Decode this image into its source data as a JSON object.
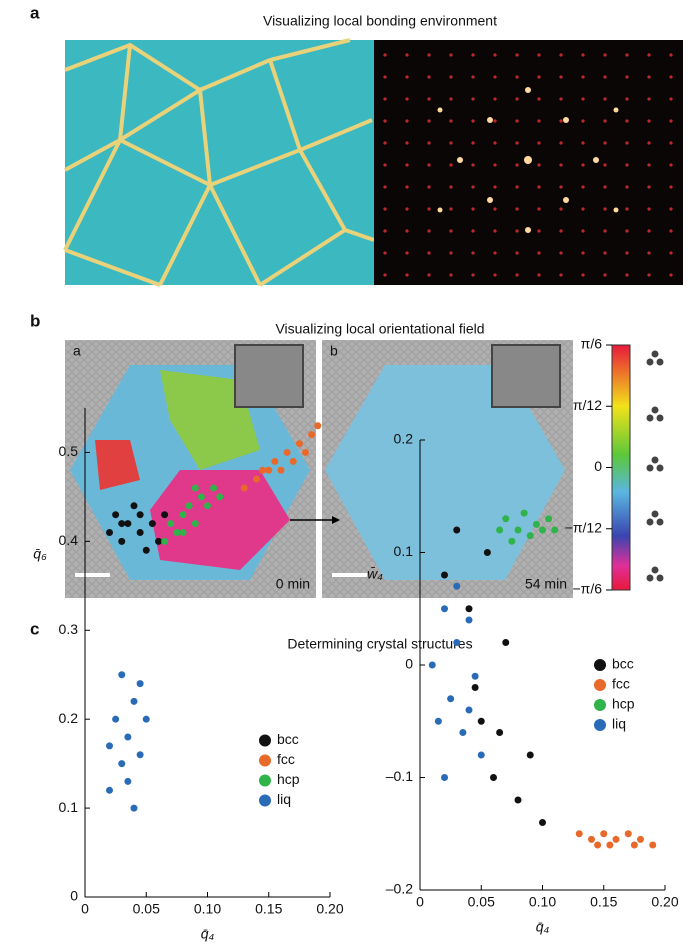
{
  "panel_a": {
    "label": "a",
    "title": "Visualizing local bonding environment"
  },
  "panel_b": {
    "label": "b",
    "title": "Visualizing local orientational field",
    "images": [
      {
        "label": "a",
        "time": "0 min"
      },
      {
        "label": "b",
        "time": "54 min"
      }
    ],
    "colorbar": {
      "lim": [
        -0.5236,
        0.5236
      ],
      "ticks": [
        {
          "value": 0.5236,
          "label": "π/6"
        },
        {
          "value": 0.2618,
          "label": "π/12"
        },
        0,
        {
          "value": -0.2618,
          "label": "−π/12"
        },
        {
          "value": -0.5236,
          "label": "−π/6"
        }
      ]
    }
  },
  "panel_c": {
    "label": "c",
    "title": "Determining crystal structures"
  },
  "chart_data": [
    {
      "type": "scatter",
      "xlabel": "q̄₄",
      "ylabel": "q̄₆",
      "xlim": [
        0,
        0.2
      ],
      "ylim": [
        0,
        0.55
      ],
      "xticks": [
        0,
        0.05,
        {
          "value": 0.1,
          "label": "0.10"
        },
        0.15,
        {
          "value": 0.2,
          "label": "0.20"
        }
      ],
      "yticks": [
        0,
        0.1,
        0.2,
        0.3,
        0.4,
        0.5
      ],
      "legend": "lower right",
      "series": [
        {
          "name": "bcc",
          "color": "#111111",
          "x": [
            0.02,
            0.025,
            0.03,
            0.035,
            0.04,
            0.045,
            0.05,
            0.055,
            0.06,
            0.065,
            0.03,
            0.045
          ],
          "y": [
            0.41,
            0.43,
            0.4,
            0.42,
            0.44,
            0.41,
            0.39,
            0.42,
            0.4,
            0.43,
            0.42,
            0.43
          ]
        },
        {
          "name": "fcc",
          "color": "#e8692a",
          "x": [
            0.13,
            0.14,
            0.15,
            0.155,
            0.16,
            0.165,
            0.17,
            0.175,
            0.18,
            0.185,
            0.19,
            0.145
          ],
          "y": [
            0.46,
            0.47,
            0.48,
            0.49,
            0.48,
            0.5,
            0.49,
            0.51,
            0.5,
            0.52,
            0.53,
            0.48
          ]
        },
        {
          "name": "hcp",
          "color": "#2fb34a",
          "x": [
            0.065,
            0.07,
            0.075,
            0.08,
            0.085,
            0.09,
            0.095,
            0.1,
            0.105,
            0.11,
            0.08,
            0.09
          ],
          "y": [
            0.4,
            0.42,
            0.41,
            0.43,
            0.44,
            0.42,
            0.45,
            0.44,
            0.46,
            0.45,
            0.41,
            0.46
          ]
        },
        {
          "name": "liq",
          "color": "#2a6bb8",
          "x": [
            0.02,
            0.025,
            0.03,
            0.03,
            0.035,
            0.04,
            0.04,
            0.045,
            0.05,
            0.02,
            0.035,
            0.045
          ],
          "y": [
            0.12,
            0.2,
            0.15,
            0.25,
            0.18,
            0.1,
            0.22,
            0.16,
            0.2,
            0.17,
            0.13,
            0.24
          ]
        }
      ]
    },
    {
      "type": "scatter",
      "xlabel": "q̄₄",
      "ylabel": "w̄₄",
      "xlim": [
        0,
        0.2
      ],
      "ylim": [
        -0.2,
        0.2
      ],
      "xticks": [
        0,
        0.05,
        {
          "value": 0.1,
          "label": "0.10"
        },
        0.15,
        {
          "value": 0.2,
          "label": "0.20"
        }
      ],
      "yticks": [
        {
          "value": -0.2,
          "label": "–0.2"
        },
        {
          "value": -0.1,
          "label": "–0.1"
        },
        0,
        0.1,
        0.2
      ],
      "legend": "center right",
      "series": [
        {
          "name": "bcc",
          "color": "#111111",
          "x": [
            0.02,
            0.03,
            0.04,
            0.05,
            0.06,
            0.07,
            0.08,
            0.09,
            0.1,
            0.045,
            0.055,
            0.065
          ],
          "y": [
            0.08,
            0.12,
            0.05,
            -0.05,
            -0.1,
            0.02,
            -0.12,
            -0.08,
            -0.14,
            -0.02,
            0.1,
            -0.06
          ]
        },
        {
          "name": "fcc",
          "color": "#e8692a",
          "x": [
            0.13,
            0.14,
            0.15,
            0.155,
            0.16,
            0.17,
            0.175,
            0.18,
            0.19,
            0.145
          ],
          "y": [
            -0.15,
            -0.155,
            -0.15,
            -0.16,
            -0.155,
            -0.15,
            -0.16,
            -0.155,
            -0.16,
            -0.16
          ]
        },
        {
          "name": "hcp",
          "color": "#2fb34a",
          "x": [
            0.065,
            0.07,
            0.075,
            0.08,
            0.085,
            0.09,
            0.095,
            0.1,
            0.105,
            0.11
          ],
          "y": [
            0.12,
            0.13,
            0.11,
            0.12,
            0.135,
            0.115,
            0.125,
            0.12,
            0.13,
            0.12
          ]
        },
        {
          "name": "liq",
          "color": "#2a6bb8",
          "x": [
            0.01,
            0.02,
            0.025,
            0.03,
            0.035,
            0.04,
            0.045,
            0.05,
            0.02,
            0.03,
            0.015,
            0.04
          ],
          "y": [
            0,
            0.05,
            -0.03,
            0.02,
            -0.06,
            0.04,
            -0.01,
            -0.08,
            -0.1,
            0.07,
            -0.05,
            -0.04
          ]
        }
      ]
    }
  ]
}
